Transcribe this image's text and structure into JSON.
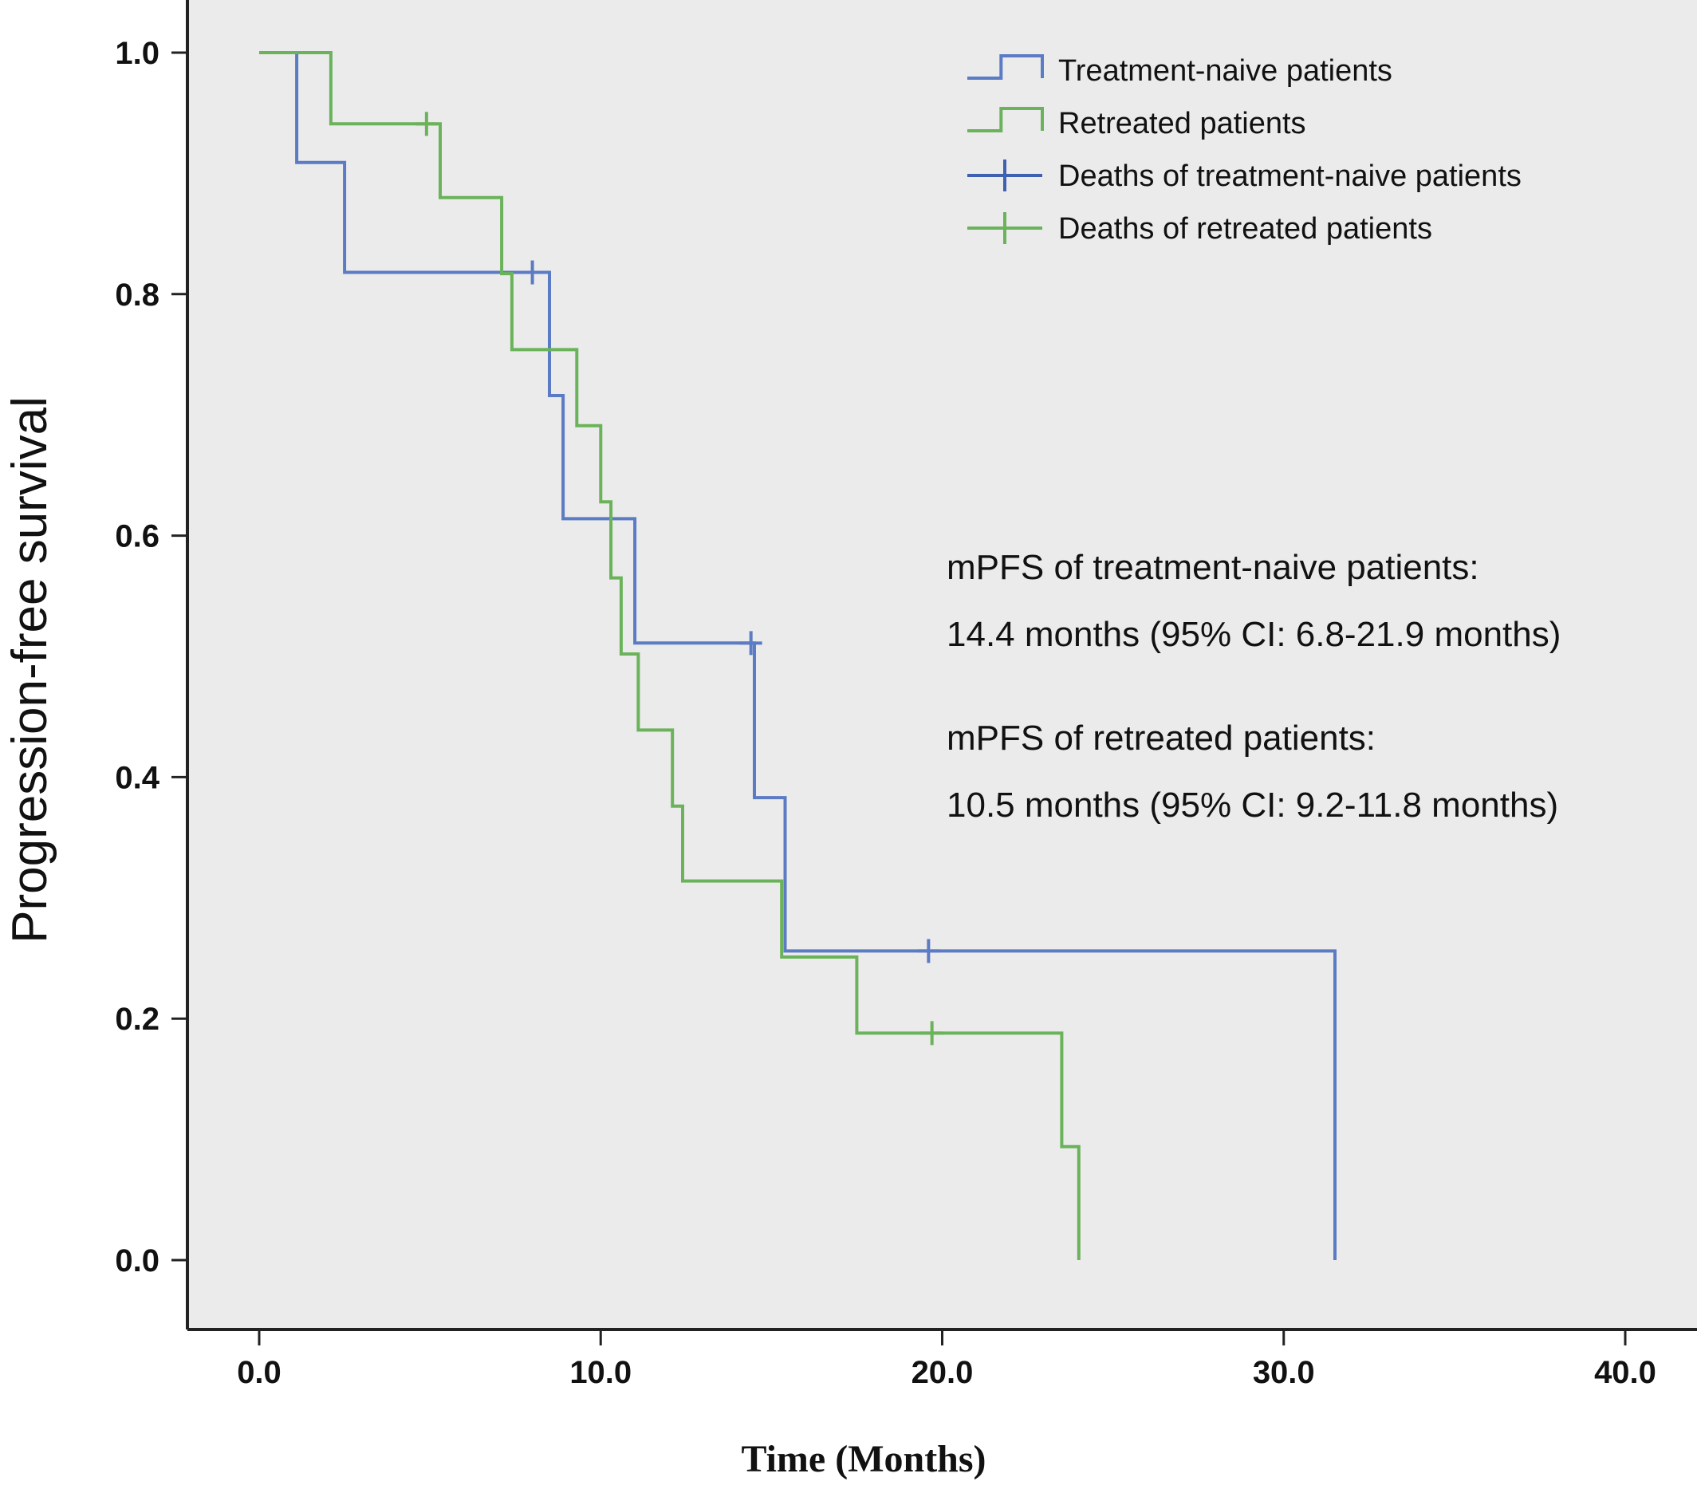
{
  "chart_data": {
    "type": "line",
    "subtype": "kaplan-meier",
    "xlabel": "Time (Months)",
    "ylabel": "Progression-free survival",
    "xlim": [
      -2,
      42
    ],
    "ylim": [
      -0.05,
      1.04
    ],
    "xticks": [
      0,
      10,
      20,
      30,
      40
    ],
    "xtick_labels": [
      "0.0",
      "10.0",
      "20.0",
      "30.0",
      "40.0"
    ],
    "yticks": [
      0,
      0.2,
      0.4,
      0.6,
      0.8,
      1.0
    ],
    "ytick_labels": [
      "0.0",
      "0.2",
      "0.4",
      "0.6",
      "0.8",
      "1.0"
    ],
    "grid": false,
    "legend_position": "top-right",
    "series": [
      {
        "name": "Treatment-naive patients",
        "color": "#5b7bc4",
        "steps": [
          [
            0,
            1.0
          ],
          [
            1.1,
            0.909
          ],
          [
            2.5,
            0.818
          ],
          [
            8.5,
            0.716
          ],
          [
            8.9,
            0.614
          ],
          [
            11.0,
            0.511
          ],
          [
            14.5,
            0.383
          ],
          [
            15.4,
            0.256
          ],
          [
            31.5,
            0.0
          ]
        ],
        "censored": [
          [
            8.0,
            0.818
          ],
          [
            14.4,
            0.511
          ],
          [
            19.6,
            0.256
          ]
        ]
      },
      {
        "name": "Retreated patients",
        "color": "#6ab35a",
        "steps": [
          [
            0,
            1.0
          ],
          [
            2.1,
            0.941
          ],
          [
            5.3,
            0.88
          ],
          [
            7.1,
            0.817
          ],
          [
            7.4,
            0.754
          ],
          [
            9.3,
            0.691
          ],
          [
            10.0,
            0.628
          ],
          [
            10.3,
            0.565
          ],
          [
            10.6,
            0.502
          ],
          [
            11.1,
            0.439
          ],
          [
            12.1,
            0.376
          ],
          [
            12.4,
            0.314
          ],
          [
            15.3,
            0.251
          ],
          [
            17.5,
            0.188
          ],
          [
            23.5,
            0.094
          ],
          [
            24.0,
            0.0
          ]
        ],
        "censored": [
          [
            4.9,
            0.941
          ],
          [
            19.7,
            0.188
          ]
        ]
      }
    ],
    "legend": [
      {
        "label": "Treatment-naive patients",
        "symbol": "step",
        "color": "#5b7bc4"
      },
      {
        "label": "Retreated patients",
        "symbol": "step",
        "color": "#6ab35a"
      },
      {
        "label": "Deaths of treatment-naive patients",
        "symbol": "censor",
        "color": "#4060b0"
      },
      {
        "label": "Deaths of retreated patients",
        "symbol": "censor",
        "color": "#6ab35a"
      }
    ],
    "annotations": [
      "mPFS of treatment-naive patients:",
      "14.4 months (95% CI: 6.8-21.9 months)",
      "mPFS of retreated patients:",
      "10.5 months (95% CI: 9.2-11.8 months)"
    ]
  }
}
